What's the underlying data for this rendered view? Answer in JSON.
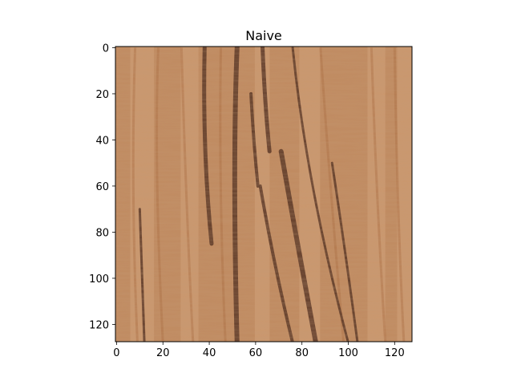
{
  "chart_data": {
    "type": "heatmap",
    "title": "Naive",
    "xlabel": "",
    "ylabel": "",
    "x_range": [
      -0.5,
      127.5
    ],
    "y_range": [
      -0.5,
      127.5
    ],
    "y_inverted": true,
    "x_ticks": [
      "0",
      "20",
      "40",
      "60",
      "80",
      "100",
      "120"
    ],
    "y_ticks": [
      "0",
      "20",
      "40",
      "60",
      "80",
      "100",
      "120"
    ],
    "image_size": [
      128,
      128
    ],
    "grid": false,
    "legend": "none",
    "colors": {
      "base": "#c08a60",
      "light": "#d2a27a",
      "grain": "#a8683f",
      "dark": "#4a2a1c"
    }
  }
}
